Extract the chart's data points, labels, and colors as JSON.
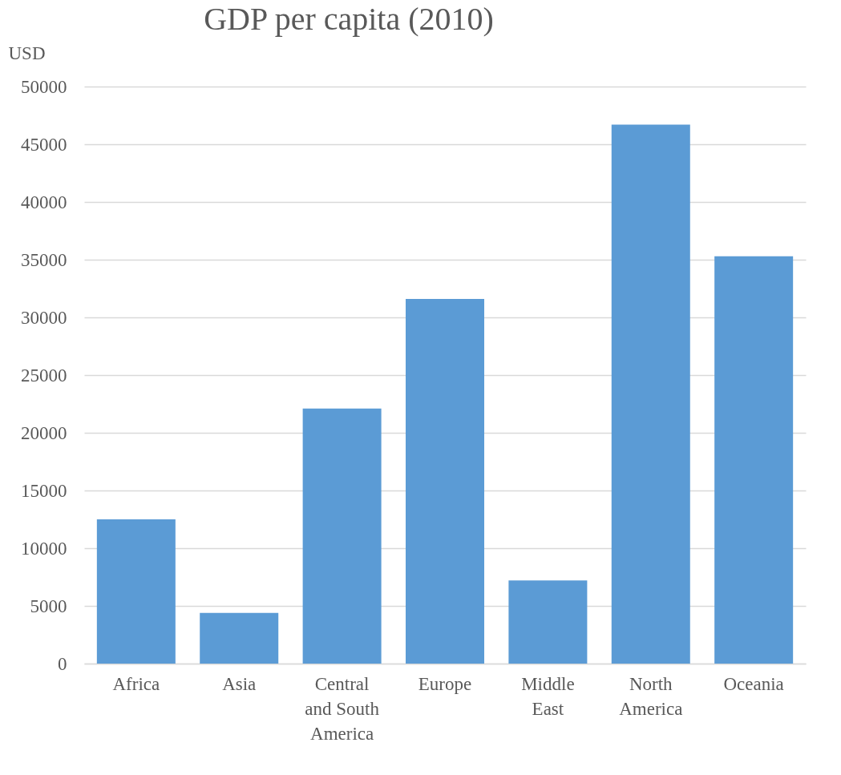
{
  "chart_data": {
    "type": "bar",
    "title": "GDP per capita (2010)",
    "ylabel": "USD",
    "categories": [
      "Africa",
      "Asia",
      "Central and South America",
      "Europe",
      "Middle East",
      "North America",
      "Oceania"
    ],
    "values": [
      12500,
      4400,
      22100,
      31600,
      7200,
      46700,
      35300
    ],
    "color": "#5b9bd5",
    "ylim": [
      0,
      50000
    ],
    "yticks": [
      0,
      5000,
      10000,
      15000,
      20000,
      25000,
      30000,
      35000,
      40000,
      45000,
      50000
    ],
    "grid": "y"
  }
}
